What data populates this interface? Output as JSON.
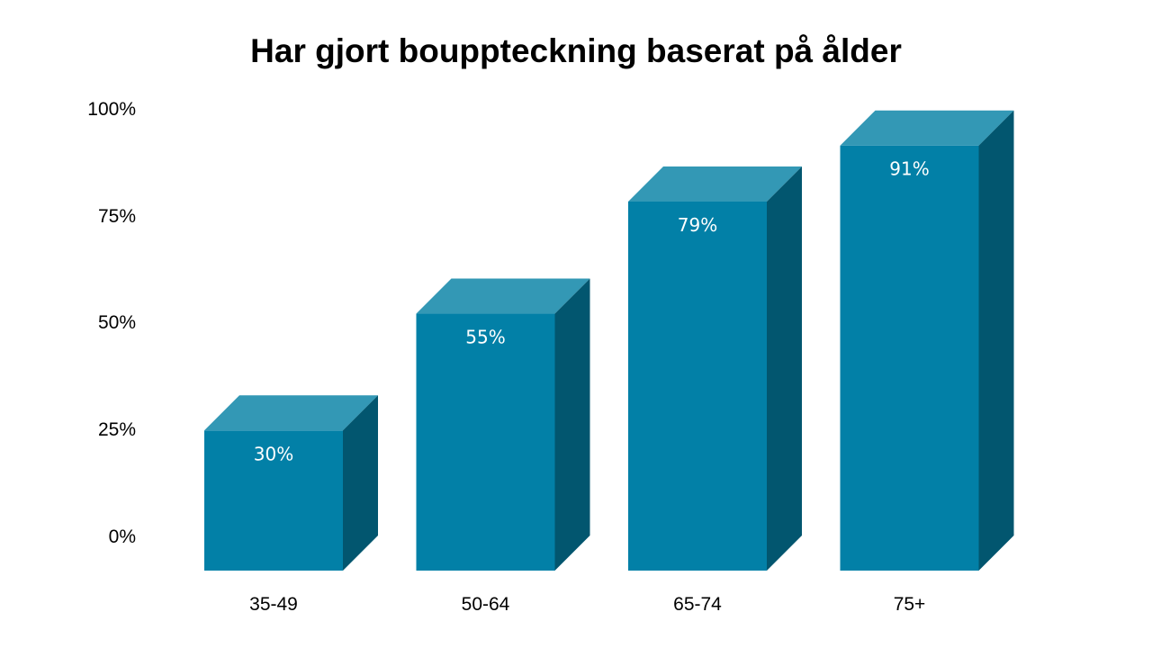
{
  "chart_data": {
    "type": "bar",
    "title": "Har gjort bouppteckning baserat på ålder",
    "xlabel": "",
    "ylabel": "",
    "categories": [
      "35-49",
      "50-64",
      "65-74",
      "75+"
    ],
    "values": [
      30,
      55,
      79,
      91
    ],
    "data_labels": [
      "30%",
      "55%",
      "79%",
      "91%"
    ],
    "ylim": [
      0,
      100
    ],
    "yticks": [
      0,
      25,
      50,
      75,
      100
    ],
    "ytick_labels": [
      "0%",
      "25%",
      "50%",
      "75%",
      "100%"
    ],
    "grid": false,
    "legend": "none",
    "style": "3d-column",
    "colors": {
      "front": "#0280A7",
      "top": "#3398B5",
      "side": "#02566F"
    }
  }
}
